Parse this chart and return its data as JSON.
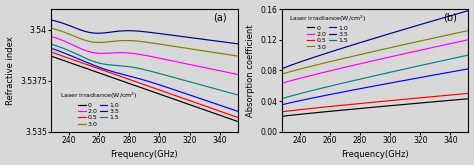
{
  "freq_start": 228,
  "freq_end": 352,
  "freq_points": 200,
  "panel_a_label": "(a)",
  "panel_b_label": "(b)",
  "xlabel": "Frequency(GHz)",
  "ylabel_a": "Refractive index",
  "ylabel_b": "Absorption coefficient",
  "ylim_a": [
    3.535,
    3.541
  ],
  "yticks_a": [
    3.535,
    3.5375,
    3.54
  ],
  "yticklabels_a": [
    "3.535",
    "3.5375",
    "3.54"
  ],
  "ylim_b": [
    0,
    0.16
  ],
  "yticks_b": [
    0,
    0.04,
    0.08,
    0.12,
    0.16
  ],
  "xlim": [
    228,
    352
  ],
  "xticks": [
    240,
    260,
    280,
    300,
    320,
    340
  ],
  "legend_title": "Laser irradiance(W/cm²)",
  "legend_col1": [
    "0",
    "0.5",
    "1.0",
    "1.5"
  ],
  "legend_col2": [
    "2.0",
    "3.0",
    "3.5"
  ],
  "legend_colors_col1": [
    "black",
    "red",
    "blue",
    "teal"
  ],
  "legend_colors_col2": [
    "magenta",
    "olive",
    "navy"
  ],
  "line_colors": [
    "black",
    "red",
    "blue",
    "teal",
    "magenta",
    "olive",
    "navy"
  ],
  "line_labels": [
    "0",
    "0.5",
    "1.0",
    "1.5",
    "2.0",
    "3.0",
    "3.5"
  ],
  "ri_start": [
    3.5387,
    3.5389,
    3.5391,
    3.5393,
    3.5397,
    3.5401,
    3.5405
  ],
  "ri_end": [
    3.5355,
    3.5357,
    3.536,
    3.5368,
    3.5378,
    3.5387,
    3.5393
  ],
  "ri_dip": [
    0.0,
    0.0,
    0.00015,
    0.0003,
    0.0004,
    0.0004,
    0.0004
  ],
  "ri_dip_pos": [
    0.3,
    0.3,
    0.28,
    0.25,
    0.22,
    0.22,
    0.22
  ],
  "ri_dip_w": [
    0.15,
    0.15,
    0.12,
    0.1,
    0.1,
    0.1,
    0.1
  ],
  "ac_start": [
    0.02,
    0.026,
    0.035,
    0.043,
    0.063,
    0.075,
    0.082
  ],
  "ac_end": [
    0.043,
    0.05,
    0.082,
    0.1,
    0.12,
    0.132,
    0.158
  ],
  "bg_color": "#d8d8d8",
  "lw": 0.85,
  "tick_fontsize": 5.5,
  "label_fontsize": 6,
  "legend_fontsize": 4.5,
  "legend_title_fontsize": 4.5
}
